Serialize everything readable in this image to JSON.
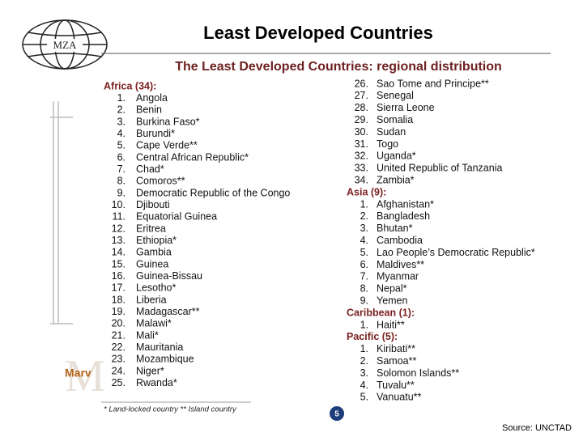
{
  "header": {
    "title": "Least Developed Countries",
    "logo": "MZA",
    "watermark": "Marv"
  },
  "subtitle": "The Least Developed Countries: regional distribution",
  "regions": [
    {
      "heading": "Africa (34):",
      "countries": [
        {
          "number": "1.",
          "name": "Angola"
        },
        {
          "number": "2.",
          "name": "Benin"
        },
        {
          "number": "3.",
          "name": "Burkina Faso*"
        },
        {
          "number": "4.",
          "name": "Burundi*"
        },
        {
          "number": "5.",
          "name": "Cape Verde**"
        },
        {
          "number": "6.",
          "name": "Central African Republic*"
        },
        {
          "number": "7.",
          "name": "Chad*"
        },
        {
          "number": "8.",
          "name": "Comoros**"
        },
        {
          "number": "9.",
          "name": "Democratic Republic of the Congo"
        },
        {
          "number": "10.",
          "name": "Djibouti"
        },
        {
          "number": "11.",
          "name": "Equatorial Guinea"
        },
        {
          "number": "12.",
          "name": "Eritrea"
        },
        {
          "number": "13.",
          "name": "Ethiopia*"
        },
        {
          "number": "14.",
          "name": "Gambia"
        },
        {
          "number": "15.",
          "name": "Guinea"
        },
        {
          "number": "16.",
          "name": "Guinea-Bissau"
        },
        {
          "number": "17.",
          "name": "Lesotho*"
        },
        {
          "number": "18.",
          "name": "Liberia"
        },
        {
          "number": "19.",
          "name": "Madagascar**"
        },
        {
          "number": "20.",
          "name": "Malawi*"
        },
        {
          "number": "21.",
          "name": "Mali*"
        },
        {
          "number": "22.",
          "name": "Mauritania"
        },
        {
          "number": "23.",
          "name": "Mozambique"
        },
        {
          "number": "24.",
          "name": "Niger*"
        },
        {
          "number": "25.",
          "name": "Rwanda*"
        },
        {
          "number": "26.",
          "name": "Sao Tome and Principe**"
        },
        {
          "number": "27.",
          "name": "Senegal"
        },
        {
          "number": "28.",
          "name": "Sierra Leone"
        },
        {
          "number": "29.",
          "name": "Somalia"
        },
        {
          "number": "30.",
          "name": "Sudan"
        },
        {
          "number": "31.",
          "name": "Togo"
        },
        {
          "number": "32.",
          "name": "Uganda*"
        },
        {
          "number": "33.",
          "name": "United Republic of Tanzania"
        },
        {
          "number": "34.",
          "name": "Zambia*"
        }
      ]
    },
    {
      "heading": "Asia (9):",
      "countries": [
        {
          "number": "1.",
          "name": "Afghanistan*"
        },
        {
          "number": "2.",
          "name": "Bangladesh"
        },
        {
          "number": "3.",
          "name": "Bhutan*"
        },
        {
          "number": "4.",
          "name": "Cambodia"
        },
        {
          "number": "5.",
          "name": "Lao People’s Democratic Republic*"
        },
        {
          "number": "6.",
          "name": "Maldives**"
        },
        {
          "number": "7.",
          "name": "Myanmar"
        },
        {
          "number": "8.",
          "name": "Nepal*"
        },
        {
          "number": "9.",
          "name": "Yemen"
        }
      ]
    },
    {
      "heading": "Caribbean (1):",
      "countries": [
        {
          "number": "1.",
          "name": "Haiti**"
        }
      ]
    },
    {
      "heading": "Pacific (5):",
      "countries": [
        {
          "number": "1.",
          "name": "Kiribati**"
        },
        {
          "number": "2.",
          "name": "Samoa**"
        },
        {
          "number": "3.",
          "name": "Solomon Islands**"
        },
        {
          "number": "4.",
          "name": "Tuvalu**"
        },
        {
          "number": "5.",
          "name": "Vanuatu**"
        }
      ]
    }
  ],
  "footnote": "* Land-locked country     ** Island country",
  "page_number": "5",
  "source": "Source: UNCTAD"
}
